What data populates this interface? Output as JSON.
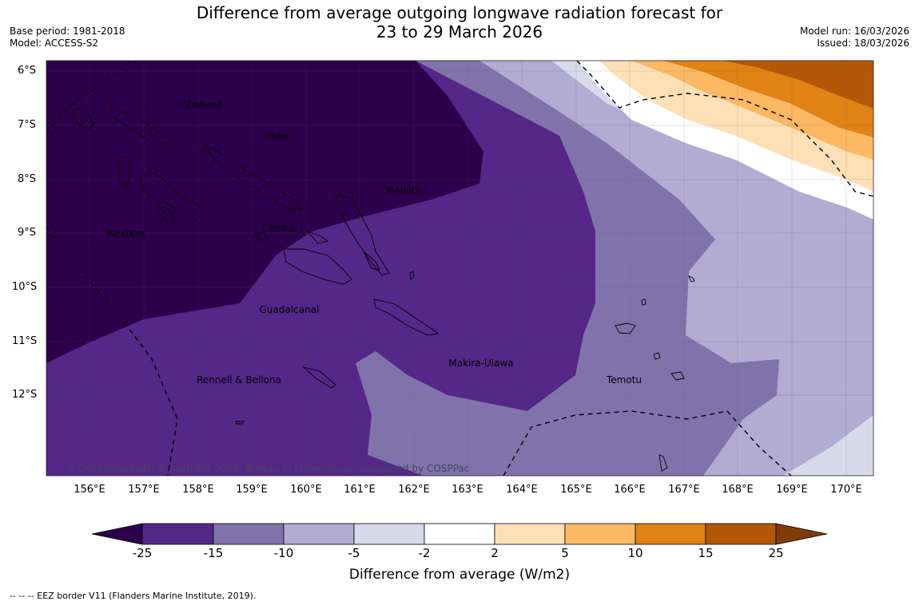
{
  "title": {
    "line1": "Difference from average outgoing longwave radiation forecast for",
    "line2": "23 to 29 March 2026"
  },
  "meta_left": {
    "base_period": "Base period: 1981-2018",
    "model": "Model: ACCESS-S2"
  },
  "meta_right": {
    "model_run": "Model run: 16/03/2026",
    "issued": "Issued: 18/03/2026"
  },
  "map": {
    "lat_labels": [
      "6°S",
      "7°S",
      "8°S",
      "9°S",
      "10°S",
      "11°S",
      "12°S"
    ],
    "lon_labels": [
      "156°E",
      "157°E",
      "158°E",
      "159°E",
      "160°E",
      "161°E",
      "162°E",
      "163°E",
      "164°E",
      "165°E",
      "166°E",
      "167°E",
      "168°E",
      "169°E",
      "170°E"
    ],
    "provinces": [
      "Choiseul",
      "Isabel",
      "Malaita",
      "Western",
      "Central",
      "Guadalcanal",
      "Makira-Ulawa",
      "Rennell & Bellona",
      "Temotu"
    ],
    "copyright": "© Commonwealth of Australia 2026, Bureau of Meteorology, supported by COSPPac"
  },
  "colorbar": {
    "ticks": [
      "-25",
      "-15",
      "-10",
      "-5",
      "-2",
      "2",
      "5",
      "10",
      "15",
      "25"
    ],
    "colors": [
      "#2d004b",
      "#542788",
      "#8073ac",
      "#b2abd2",
      "#d8daeb",
      "#ffffff",
      "#fee0b6",
      "#fdb863",
      "#e08214",
      "#b35806",
      "#7f3b08"
    ],
    "label": "Difference from average (W/m2)"
  },
  "footnote": "--  --  -- EEZ border V11 (Flanders Marine Institute, 2019)."
}
